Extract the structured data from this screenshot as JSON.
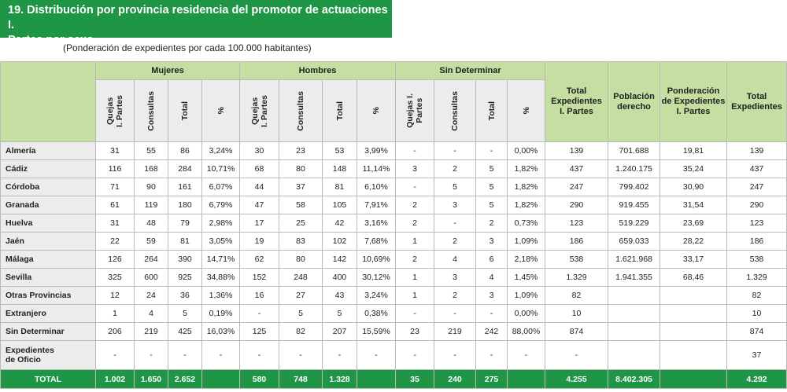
{
  "title": {
    "line1": "19. Distribución por provincia residencia del promotor de actuaciones I.",
    "line2": "Partes por sexo"
  },
  "subtitle": "(Ponderación de expedientes por cada 100.000 habitantes)",
  "headers": {
    "mujeres": "Mujeres",
    "hombres": "Hombres",
    "sin_determinar": "Sin Determinar",
    "total_exp_ip": [
      "Total",
      "Expedientes",
      "I. Partes"
    ],
    "poblacion": [
      "Población",
      "derecho"
    ],
    "ponderacion": [
      "Ponderación",
      "de Expedientes",
      "I. Partes"
    ],
    "total_exp": [
      "Total",
      "Expedientes"
    ],
    "sub": {
      "quejas": [
        "Quejas",
        "I. Partes"
      ],
      "quejas_sd": [
        "Quejas I.",
        "Partes"
      ],
      "consultas": "Consultas",
      "total": "Total",
      "pct": "%"
    }
  },
  "rows": [
    {
      "label": [
        "Almería"
      ],
      "cells": [
        "31",
        "55",
        "86",
        "3,24%",
        "30",
        "23",
        "53",
        "3,99%",
        "-",
        "-",
        "-",
        "0,00%",
        "139",
        "701.688",
        "19,81",
        "139"
      ]
    },
    {
      "label": [
        "Cádiz"
      ],
      "cells": [
        "116",
        "168",
        "284",
        "10,71%",
        "68",
        "80",
        "148",
        "11,14%",
        "3",
        "2",
        "5",
        "1,82%",
        "437",
        "1.240.175",
        "35,24",
        "437"
      ]
    },
    {
      "label": [
        "Córdoba"
      ],
      "cells": [
        "71",
        "90",
        "161",
        "6,07%",
        "44",
        "37",
        "81",
        "6,10%",
        "-",
        "5",
        "5",
        "1,82%",
        "247",
        "799.402",
        "30,90",
        "247"
      ]
    },
    {
      "label": [
        "Granada"
      ],
      "cells": [
        "61",
        "119",
        "180",
        "6,79%",
        "47",
        "58",
        "105",
        "7,91%",
        "2",
        "3",
        "5",
        "1,82%",
        "290",
        "919.455",
        "31,54",
        "290"
      ]
    },
    {
      "label": [
        "Huelva"
      ],
      "cells": [
        "31",
        "48",
        "79",
        "2,98%",
        "17",
        "25",
        "42",
        "3,16%",
        "2",
        "-",
        "2",
        "0,73%",
        "123",
        "519.229",
        "23,69",
        "123"
      ]
    },
    {
      "label": [
        "Jaén"
      ],
      "cells": [
        "22",
        "59",
        "81",
        "3,05%",
        "19",
        "83",
        "102",
        "7,68%",
        "1",
        "2",
        "3",
        "1,09%",
        "186",
        "659.033",
        "28,22",
        "186"
      ]
    },
    {
      "label": [
        "Málaga"
      ],
      "cells": [
        "126",
        "264",
        "390",
        "14,71%",
        "62",
        "80",
        "142",
        "10,69%",
        "2",
        "4",
        "6",
        "2,18%",
        "538",
        "1.621.968",
        "33,17",
        "538"
      ]
    },
    {
      "label": [
        "Sevilla"
      ],
      "cells": [
        "325",
        "600",
        "925",
        "34,88%",
        "152",
        "248",
        "400",
        "30,12%",
        "1",
        "3",
        "4",
        "1,45%",
        "1.329",
        "1.941.355",
        "68,46",
        "1.329"
      ]
    },
    {
      "label": [
        "Otras Provincias"
      ],
      "cells": [
        "12",
        "24",
        "36",
        "1,36%",
        "16",
        "27",
        "43",
        "3,24%",
        "1",
        "2",
        "3",
        "1,09%",
        "82",
        "",
        "",
        "82"
      ]
    },
    {
      "label": [
        "Extranjero"
      ],
      "cells": [
        "1",
        "4",
        "5",
        "0,19%",
        "-",
        "5",
        "5",
        "0,38%",
        "-",
        "-",
        "-",
        "0,00%",
        "10",
        "",
        "",
        "10"
      ]
    },
    {
      "label": [
        "Sin Determinar"
      ],
      "cells": [
        "206",
        "219",
        "425",
        "16,03%",
        "125",
        "82",
        "207",
        "15,59%",
        "23",
        "219",
        "242",
        "88,00%",
        "874",
        "",
        "",
        "874"
      ]
    },
    {
      "label": [
        "Expedientes",
        "de Oficio"
      ],
      "cells": [
        "-",
        "-",
        "-",
        "-",
        "-",
        "-",
        "-",
        "-",
        "-",
        "-",
        "-",
        "-",
        "-",
        "",
        "",
        "37"
      ]
    }
  ],
  "total": {
    "label": "TOTAL",
    "cells": [
      "1.002",
      "1.650",
      "2.652",
      "",
      "580",
      "748",
      "1.328",
      "",
      "35",
      "240",
      "275",
      "",
      "4.255",
      "8.402.305",
      "",
      "4.292"
    ]
  }
}
